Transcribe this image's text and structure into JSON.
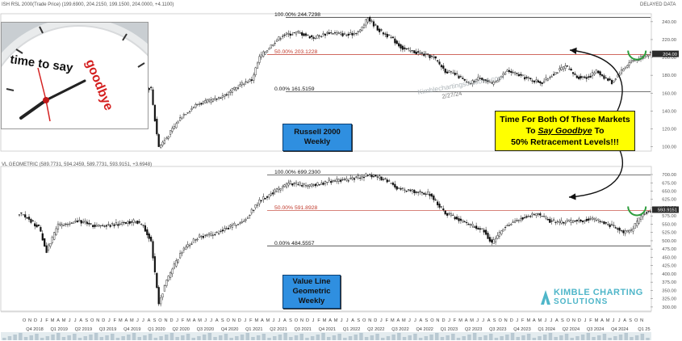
{
  "top_header": "ISH RSL 2000(Trade Price) (199.6900, 204.2150, 199.1500, 204.0000, +4.1100)",
  "bottom_header": "VL GEOMETRIC (589.7731, 594.2459, 589.7731, 593.9151, +3.6948)",
  "delayed": "DELAYED DATA",
  "clock_text": {
    "a": "time to say",
    "b": "goodbye"
  },
  "callout": {
    "line1": "Time For Both Of These Markets",
    "line2a": "To ",
    "line2b": "Say Goodbye",
    "line2c": " To",
    "line3": "50% Retracement Levels!!!"
  },
  "top_label": {
    "l1": "Russell 2000",
    "l2": "Weekly"
  },
  "bottom_label": {
    "l1": "Value Line",
    "l2": "Geometric",
    "l3": "Weekly"
  },
  "watermark": "Kimblechartingsolutions.com",
  "watermark_date": "2/27/24",
  "logo": {
    "line1": "KIMBLE CHARTING",
    "line2": "SOLUTIONS"
  },
  "colors": {
    "fib": "#c0392b",
    "level": "#222222",
    "box": "#2f8fe0",
    "callout": "#ffff00",
    "circle": "#2e9e3e"
  },
  "chart_data": [
    {
      "type": "candlestick",
      "title": "Russell 2000 Weekly",
      "ylim": [
        96,
        248
      ],
      "yticks": [
        100,
        120,
        140,
        160,
        180,
        200,
        220,
        240
      ],
      "levels": [
        {
          "label": "100.00% 244.7298",
          "value": 244.73,
          "style": "high"
        },
        {
          "label": "50.00% 203.1228",
          "value": 203.12,
          "style": "fib"
        },
        {
          "label": "0.00% 161.5159",
          "value": 161.52,
          "style": "low"
        }
      ],
      "last_price": 204.0,
      "anchor": [
        [
          0,
          164
        ],
        [
          14,
          160
        ],
        [
          25,
          158
        ],
        [
          42,
          157
        ],
        [
          52,
          156
        ],
        [
          60,
          170
        ],
        [
          64,
          168
        ],
        [
          68,
          165
        ],
        [
          70,
          130
        ],
        [
          72,
          100
        ],
        [
          76,
          110
        ],
        [
          84,
          135
        ],
        [
          92,
          148
        ],
        [
          100,
          152
        ],
        [
          108,
          160
        ],
        [
          116,
          172
        ],
        [
          120,
          175
        ],
        [
          124,
          200
        ],
        [
          132,
          218
        ],
        [
          136,
          225
        ],
        [
          144,
          228
        ],
        [
          152,
          222
        ],
        [
          160,
          228
        ],
        [
          170,
          225
        ],
        [
          176,
          230
        ],
        [
          180,
          244
        ],
        [
          186,
          230
        ],
        [
          192,
          222
        ],
        [
          198,
          210
        ],
        [
          206,
          205
        ],
        [
          214,
          200
        ],
        [
          220,
          185
        ],
        [
          226,
          180
        ],
        [
          232,
          170
        ],
        [
          238,
          178
        ],
        [
          244,
          170
        ],
        [
          252,
          185
        ],
        [
          258,
          180
        ],
        [
          264,
          175
        ],
        [
          270,
          172
        ],
        [
          276,
          182
        ],
        [
          282,
          190
        ],
        [
          288,
          178
        ],
        [
          294,
          178
        ],
        [
          298,
          185
        ],
        [
          302,
          178
        ],
        [
          306,
          172
        ],
        [
          310,
          183
        ],
        [
          316,
          196
        ],
        [
          322,
          200
        ],
        [
          326,
          205
        ]
      ]
    },
    {
      "type": "candlestick",
      "title": "Value Line Geometric Weekly",
      "ylim": [
        290,
        722
      ],
      "yticks": [
        300,
        325,
        350,
        375,
        400,
        425,
        450,
        475,
        500,
        525,
        550,
        575,
        600,
        625,
        650,
        675,
        700
      ],
      "levels": [
        {
          "label": "100.00% 699.2300",
          "value": 699.23,
          "style": "high"
        },
        {
          "label": "50.00% 591.8928",
          "value": 591.89,
          "style": "fib"
        },
        {
          "label": "0.00% 484.5557",
          "value": 484.56,
          "style": "low"
        }
      ],
      "last_price": 593.9151,
      "anchor": [
        [
          0,
          585
        ],
        [
          4,
          570
        ],
        [
          10,
          540
        ],
        [
          14,
          470
        ],
        [
          20,
          545
        ],
        [
          30,
          560
        ],
        [
          40,
          545
        ],
        [
          50,
          550
        ],
        [
          60,
          560
        ],
        [
          64,
          545
        ],
        [
          68,
          500
        ],
        [
          72,
          310
        ],
        [
          76,
          380
        ],
        [
          84,
          470
        ],
        [
          92,
          510
        ],
        [
          100,
          520
        ],
        [
          108,
          540
        ],
        [
          116,
          560
        ],
        [
          120,
          590
        ],
        [
          124,
          620
        ],
        [
          132,
          650
        ],
        [
          140,
          675
        ],
        [
          150,
          665
        ],
        [
          160,
          680
        ],
        [
          170,
          685
        ],
        [
          180,
          698
        ],
        [
          184,
          695
        ],
        [
          190,
          680
        ],
        [
          196,
          655
        ],
        [
          204,
          650
        ],
        [
          212,
          640
        ],
        [
          220,
          585
        ],
        [
          228,
          560
        ],
        [
          234,
          545
        ],
        [
          240,
          530
        ],
        [
          244,
          490
        ],
        [
          250,
          540
        ],
        [
          256,
          560
        ],
        [
          262,
          575
        ],
        [
          268,
          580
        ],
        [
          274,
          560
        ],
        [
          280,
          555
        ],
        [
          288,
          560
        ],
        [
          296,
          565
        ],
        [
          302,
          555
        ],
        [
          308,
          540
        ],
        [
          312,
          525
        ],
        [
          316,
          530
        ],
        [
          322,
          580
        ],
        [
          326,
          594
        ]
      ]
    }
  ],
  "x_quarters": [
    "Q4 2018",
    "Q1 2019",
    "Q2 2019",
    "Q3 2019",
    "Q4 2019",
    "Q1 2020",
    "Q2 2020",
    "Q3 2020",
    "Q4 2020",
    "Q1 2021",
    "Q2 2021",
    "Q3 2021",
    "Q4 2021",
    "Q1 2022",
    "Q2 2022",
    "Q3 2022",
    "Q4 2022",
    "Q1 2023",
    "Q2 2023",
    "Q3 2023",
    "Q4 2023",
    "Q1 2024",
    "Q2 2024",
    "Q3 2024",
    "Q4 2024",
    "Q1 25"
  ],
  "x_months": [
    "O",
    "N",
    "D",
    "J",
    "F",
    "M",
    "A",
    "M",
    "J",
    "J",
    "A",
    "S",
    "O",
    "N",
    "D",
    "J",
    "F",
    "M",
    "A",
    "M",
    "J",
    "J",
    "A",
    "S",
    "O",
    "N",
    "D",
    "J",
    "F",
    "M",
    "A",
    "M",
    "J",
    "J",
    "A",
    "S",
    "O",
    "N",
    "D",
    "J",
    "F",
    "M",
    "A",
    "M",
    "J",
    "J",
    "A",
    "S",
    "O",
    "N",
    "D",
    "J",
    "F",
    "M",
    "A",
    "M",
    "J",
    "J",
    "A",
    "S",
    "O",
    "N",
    "D",
    "J",
    "F",
    "M",
    "A",
    "M",
    "J",
    "J",
    "A",
    "S",
    "O",
    "N",
    "D",
    "J",
    "F",
    "M",
    "A",
    "M",
    "J",
    "J",
    "A",
    "S",
    "O",
    "N",
    "D",
    "J",
    "F",
    "M",
    "A",
    "M",
    "J",
    "J",
    "A",
    "S",
    "O",
    "N",
    "D",
    "J",
    "F",
    "M",
    "A",
    "M",
    "J",
    "J",
    "A",
    "S",
    "O",
    "N"
  ]
}
